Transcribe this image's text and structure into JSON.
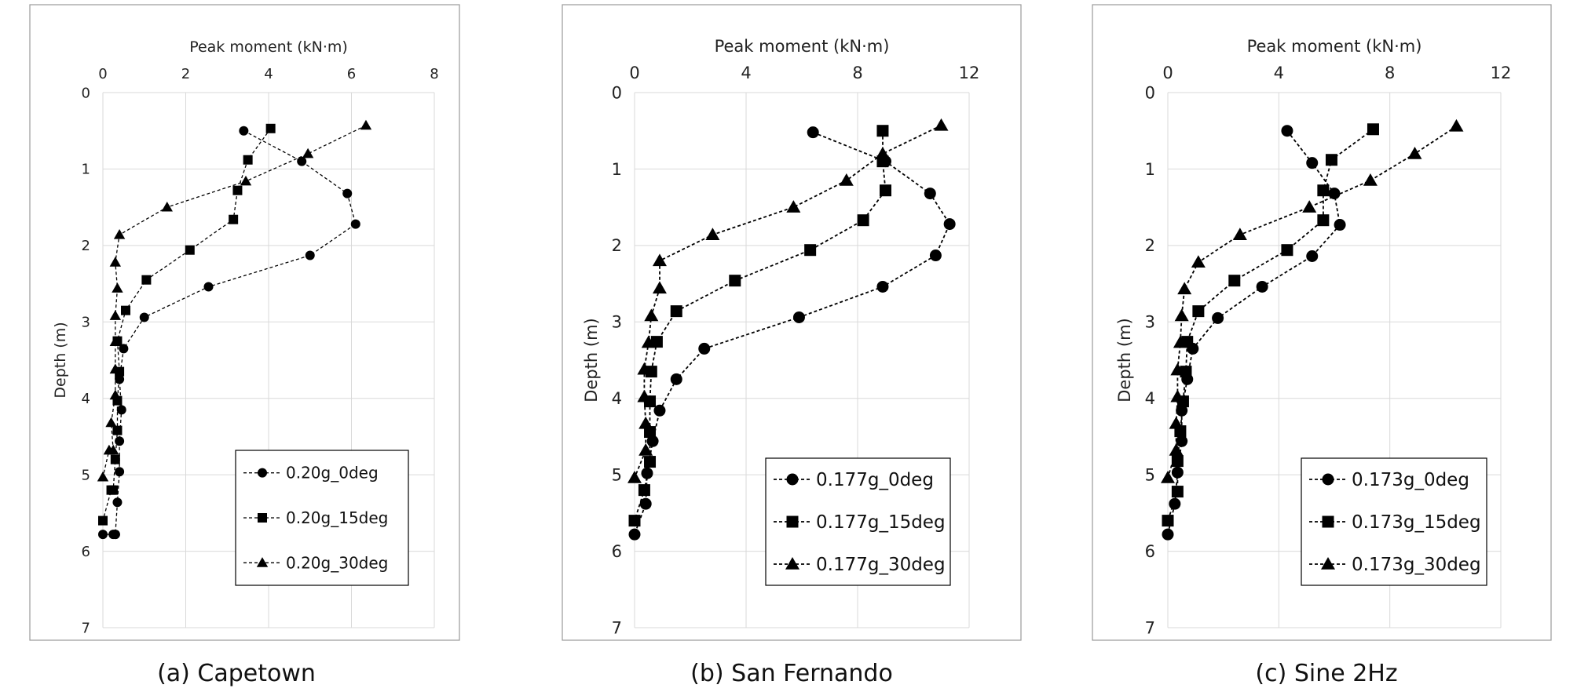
{
  "chart_data": [
    {
      "type": "line",
      "xlabel": "Peak moment (kN·m)",
      "ylabel": "Depth (m)",
      "xlim": [
        0,
        8
      ],
      "ylim": [
        0,
        7
      ],
      "xticks": [
        "0",
        "2",
        "4",
        "6",
        "8"
      ],
      "yticks": [
        "0",
        "1",
        "2",
        "3",
        "4",
        "5",
        "6",
        "7"
      ],
      "x_axis_position": "top",
      "y_inverted": true,
      "grid": true,
      "legend_position": "bottom-right",
      "caption": "(a) Capetown",
      "series": [
        {
          "name": "0.20g_0deg",
          "marker": "circle",
          "x": [
            3.4,
            4.8,
            5.9,
            6.1,
            5.0,
            2.55,
            1.0,
            0.5,
            0.4,
            0.45,
            0.4,
            0.4,
            0.35,
            0.3,
            0.3,
            0.25,
            0.0
          ],
          "y": [
            0.5,
            0.9,
            1.32,
            1.72,
            2.13,
            2.54,
            2.94,
            3.35,
            3.75,
            4.15,
            4.56,
            4.96,
            5.36,
            5.78,
            5.78,
            5.78,
            5.78
          ]
        },
        {
          "name": "0.20g_15deg",
          "marker": "square",
          "x": [
            4.05,
            3.5,
            3.25,
            3.15,
            2.1,
            1.05,
            0.55,
            0.35,
            0.4,
            0.35,
            0.35,
            0.3,
            0.25,
            0.2,
            0.0
          ],
          "y": [
            0.47,
            0.88,
            1.28,
            1.66,
            2.06,
            2.45,
            2.85,
            3.25,
            3.65,
            4.03,
            4.42,
            4.8,
            5.2,
            5.2,
            5.6
          ]
        },
        {
          "name": "0.20g_30deg",
          "marker": "triangle",
          "x": [
            6.35,
            4.95,
            3.45,
            1.55,
            0.4,
            0.3,
            0.35,
            0.3,
            0.3,
            0.3,
            0.3,
            0.2,
            0.25,
            0.15,
            0.0
          ],
          "y": [
            0.43,
            0.8,
            1.16,
            1.5,
            1.86,
            2.22,
            2.56,
            2.92,
            3.26,
            3.62,
            3.96,
            4.32,
            4.68,
            4.68,
            5.03
          ]
        }
      ]
    },
    {
      "type": "line",
      "xlabel": "Peak moment (kN·m)",
      "ylabel": "Depth (m)",
      "xlim": [
        0,
        12
      ],
      "ylim": [
        0,
        7
      ],
      "xticks": [
        "0",
        "4",
        "8",
        "12"
      ],
      "yticks": [
        "0",
        "1",
        "2",
        "3",
        "4",
        "5",
        "6",
        "7"
      ],
      "x_axis_position": "top",
      "y_inverted": true,
      "grid": true,
      "legend_position": "bottom-right",
      "caption": "(b) San Fernando",
      "series": [
        {
          "name": "0.177g_0deg",
          "marker": "circle",
          "x": [
            6.4,
            9.0,
            10.6,
            11.3,
            10.8,
            8.9,
            5.9,
            2.5,
            1.5,
            0.9,
            0.65,
            0.45,
            0.4,
            0.0
          ],
          "y": [
            0.52,
            0.9,
            1.32,
            1.72,
            2.13,
            2.54,
            2.94,
            3.35,
            3.75,
            4.16,
            4.56,
            4.98,
            5.38,
            5.78
          ]
        },
        {
          "name": "0.177g_15deg",
          "marker": "square",
          "x": [
            8.9,
            8.9,
            9.0,
            8.2,
            6.3,
            3.6,
            1.5,
            0.8,
            0.6,
            0.55,
            0.55,
            0.55,
            0.35,
            0.0
          ],
          "y": [
            0.5,
            0.9,
            1.28,
            1.67,
            2.06,
            2.46,
            2.86,
            3.26,
            3.65,
            4.04,
            4.44,
            4.83,
            5.2,
            5.6
          ]
        },
        {
          "name": "0.177g_30deg",
          "marker": "triangle",
          "x": [
            11.0,
            8.9,
            7.6,
            5.7,
            2.8,
            0.9,
            0.9,
            0.6,
            0.5,
            0.35,
            0.35,
            0.4,
            0.4,
            0.0
          ],
          "y": [
            0.43,
            0.8,
            1.15,
            1.5,
            1.86,
            2.2,
            2.56,
            2.92,
            3.27,
            3.62,
            3.98,
            4.33,
            4.68,
            5.04
          ]
        }
      ]
    },
    {
      "type": "line",
      "xlabel": "Peak moment (kN·m)",
      "ylabel": "Depth (m)",
      "xlim": [
        0,
        12
      ],
      "ylim": [
        0,
        7
      ],
      "xticks": [
        "0",
        "4",
        "8",
        "12"
      ],
      "yticks": [
        "0",
        "1",
        "2",
        "3",
        "4",
        "5",
        "6",
        "7"
      ],
      "x_axis_position": "top",
      "y_inverted": true,
      "grid": true,
      "legend_position": "bottom-right",
      "caption": "(c) Sine 2Hz",
      "series": [
        {
          "name": "0.173g_0deg",
          "marker": "circle",
          "x": [
            4.3,
            5.2,
            6.0,
            6.2,
            5.2,
            3.4,
            1.8,
            0.9,
            0.7,
            0.5,
            0.5,
            0.35,
            0.25,
            0.0
          ],
          "y": [
            0.5,
            0.92,
            1.32,
            1.73,
            2.14,
            2.54,
            2.95,
            3.35,
            3.75,
            4.16,
            4.56,
            4.97,
            5.38,
            5.78
          ]
        },
        {
          "name": "0.173g_15deg",
          "marker": "square",
          "x": [
            7.4,
            5.9,
            5.6,
            5.6,
            4.3,
            2.4,
            1.1,
            0.7,
            0.65,
            0.55,
            0.45,
            0.35,
            0.35,
            0.0
          ],
          "y": [
            0.48,
            0.88,
            1.28,
            1.67,
            2.06,
            2.46,
            2.86,
            3.26,
            3.65,
            4.04,
            4.43,
            4.82,
            5.22,
            5.6
          ]
        },
        {
          "name": "0.173g_30deg",
          "marker": "triangle",
          "x": [
            10.4,
            8.9,
            7.3,
            5.1,
            2.6,
            1.1,
            0.6,
            0.5,
            0.45,
            0.35,
            0.35,
            0.3,
            0.3,
            0.0
          ],
          "y": [
            0.44,
            0.8,
            1.15,
            1.5,
            1.86,
            2.22,
            2.57,
            2.92,
            3.27,
            3.63,
            3.98,
            4.33,
            4.68,
            5.04
          ]
        }
      ]
    }
  ]
}
